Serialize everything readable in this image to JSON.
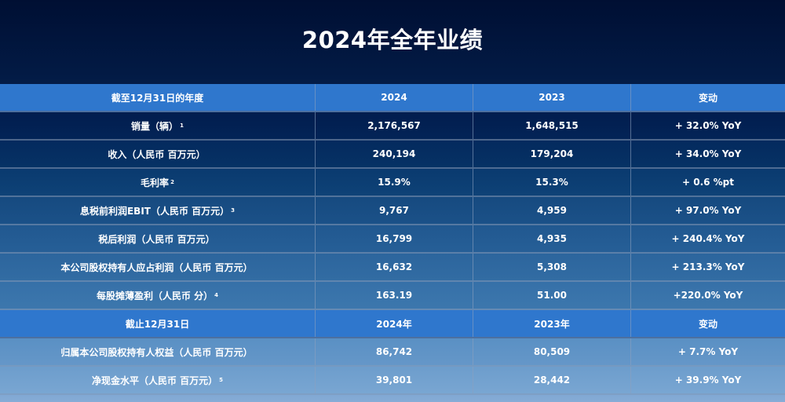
{
  "title": "2024年全年业绩",
  "section1": {
    "headers": [
      "截至12月31日的年度",
      "2024",
      "2023",
      "变动"
    ],
    "rows": [
      {
        "label": "销量（辆）",
        "fn": "1",
        "v2024": "2,176,567",
        "v2023": "1,648,515",
        "change": "+ 32.0% YoY"
      },
      {
        "label": "收入（人民币 百万元）",
        "fn": "",
        "v2024": "240,194",
        "v2023": "179,204",
        "change": "+ 34.0% YoY"
      },
      {
        "label": "毛利率",
        "fn": "2",
        "v2024": "15.9%",
        "v2023": "15.3%",
        "change": "+ 0.6 %pt"
      },
      {
        "label": "息税前利润EBIT（人民币 百万元）",
        "fn": "3",
        "v2024": "9,767",
        "v2023": "4,959",
        "change": "+ 97.0% YoY"
      },
      {
        "label": "税后利润（人民币 百万元）",
        "fn": "",
        "v2024": "16,799",
        "v2023": "4,935",
        "change": "+ 240.4% YoY"
      },
      {
        "label": "本公司股权持有人应占利润（人民币 百万元）",
        "fn": "",
        "v2024": "16,632",
        "v2023": "5,308",
        "change": "+ 213.3% YoY"
      },
      {
        "label": "每股摊薄盈利（人民币 分）",
        "fn": "4",
        "v2024": "163.19",
        "v2023": "51.00",
        "change": "+220.0% YoY"
      }
    ]
  },
  "section2": {
    "headers": [
      "截止12月31日",
      "2024年",
      "2023年",
      "变动"
    ],
    "rows": [
      {
        "label": "归属本公司股权持有人权益（人民币 百万元）",
        "fn": "",
        "v2024": "86,742",
        "v2023": "80,509",
        "change": "+ 7.7% YoY"
      },
      {
        "label": "净现金水平（人民币 百万元）",
        "fn": "5",
        "v2024": "39,801",
        "v2023": "28,442",
        "change": "+ 39.9% YoY"
      }
    ]
  },
  "colors": {
    "header_blue": "#2f77cd",
    "bg_top": "#000f33",
    "bg_bottom": "#86acd6",
    "text": "#ffffff"
  }
}
